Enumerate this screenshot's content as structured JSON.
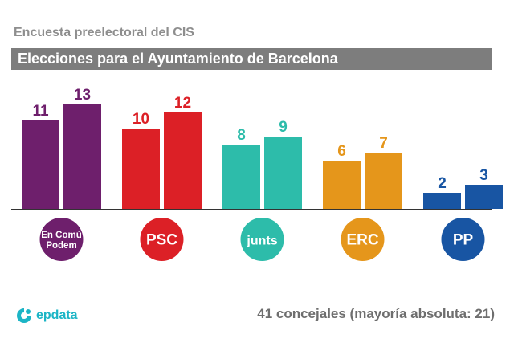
{
  "header": {
    "subtitle": "Encuesta preelectoral del CIS",
    "title": "Elecciones para el Ayuntamiento de Barcelona"
  },
  "footer": {
    "note": "41 concejales (mayoría absoluta: 21)",
    "brand": "epdata"
  },
  "chart_data": {
    "type": "bar",
    "title": "Elecciones para el Ayuntamiento de Barcelona",
    "subtitle": "Encuesta preelectoral del CIS",
    "xlabel": "",
    "ylabel": "",
    "ylim": [
      0,
      13
    ],
    "grid": false,
    "legend": "none",
    "categories": [
      {
        "name": "En Comú Podem",
        "logo_text": [
          "En Comú",
          "Podem"
        ],
        "color": "#6e1f6c",
        "values": [
          11,
          13
        ]
      },
      {
        "name": "PSC",
        "logo_text": [
          "PSC"
        ],
        "color": "#dc2026",
        "values": [
          10,
          12
        ]
      },
      {
        "name": "junts",
        "logo_text": [
          "junts"
        ],
        "color": "#2dbcaa",
        "values": [
          8,
          9
        ]
      },
      {
        "name": "ERC",
        "logo_text": [
          "ERC"
        ],
        "color": "#e5961b",
        "values": [
          6,
          7
        ]
      },
      {
        "name": "PP",
        "logo_text": [
          "PP"
        ],
        "color": "#1855a3",
        "values": [
          2,
          3
        ]
      }
    ]
  }
}
